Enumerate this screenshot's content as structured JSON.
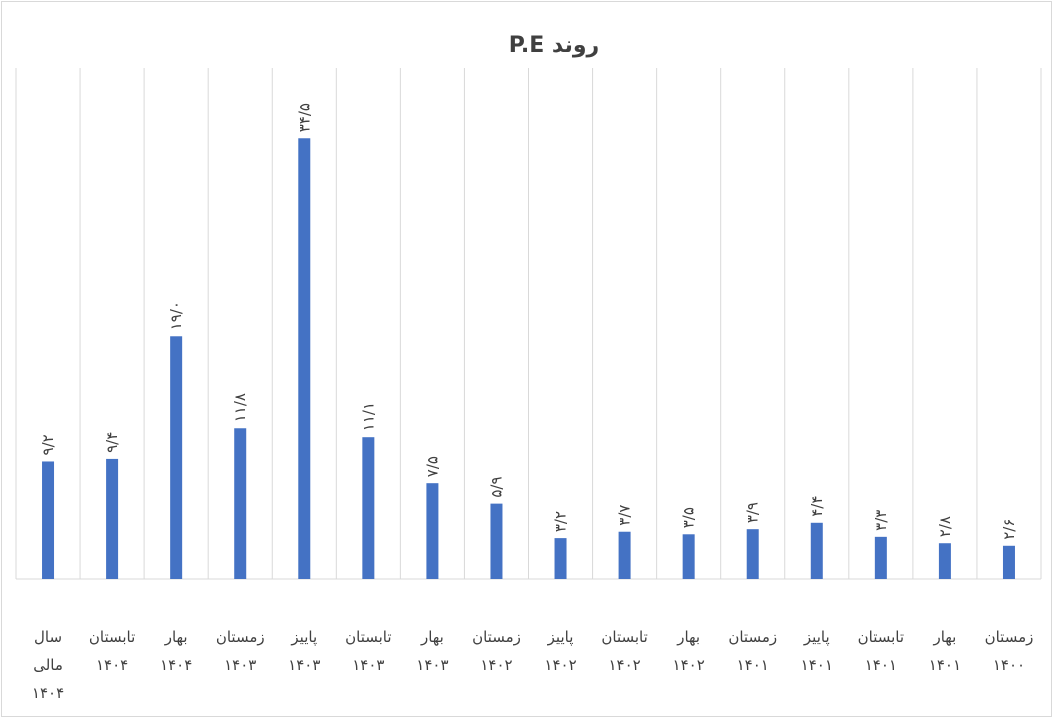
{
  "chart_data": {
    "type": "bar",
    "title": "روند  P.E",
    "categories": [
      [
        "زمستان",
        "۱۴۰۰"
      ],
      [
        "بهار",
        "۱۴۰۱"
      ],
      [
        "تابستان",
        "۱۴۰۱"
      ],
      [
        "پاییز",
        "۱۴۰۱"
      ],
      [
        "زمستان",
        "۱۴۰۱"
      ],
      [
        "بهار",
        "۱۴۰۲"
      ],
      [
        "تابستان",
        "۱۴۰۲"
      ],
      [
        "پاییز",
        "۱۴۰۲"
      ],
      [
        "زمستان",
        "۱۴۰۲"
      ],
      [
        "بهار",
        "۱۴۰۳"
      ],
      [
        "تابستان",
        "۱۴۰۳"
      ],
      [
        "پاییز",
        "۱۴۰۳"
      ],
      [
        "زمستان",
        "۱۴۰۳"
      ],
      [
        "بهار",
        "۱۴۰۴"
      ],
      [
        "تابستان",
        "۱۴۰۴"
      ],
      [
        "سال",
        "مالی",
        "۱۴۰۴"
      ]
    ],
    "values": [
      2.6,
      2.8,
      3.3,
      4.4,
      3.9,
      3.5,
      3.7,
      3.2,
      5.9,
      7.5,
      11.1,
      34.5,
      11.8,
      19.0,
      9.4,
      9.2
    ],
    "data_labels": [
      "۲/۶",
      "۲/۸",
      "۳/۳",
      "۴/۴",
      "۳/۹",
      "۳/۵",
      "۳/۷",
      "۳/۲",
      "۵/۹",
      "۷/۵",
      "۱۱/۱",
      "۳۴/۵",
      "۱۱/۸",
      "۱۹/۰",
      "۹/۴",
      "۹/۲"
    ],
    "ylim": [
      0,
      40
    ],
    "grid": "vertical separators between categories",
    "legend": "none",
    "colors": {
      "bar": "#4472C4",
      "grid": "#d9d9d9",
      "text": "#404040"
    }
  }
}
